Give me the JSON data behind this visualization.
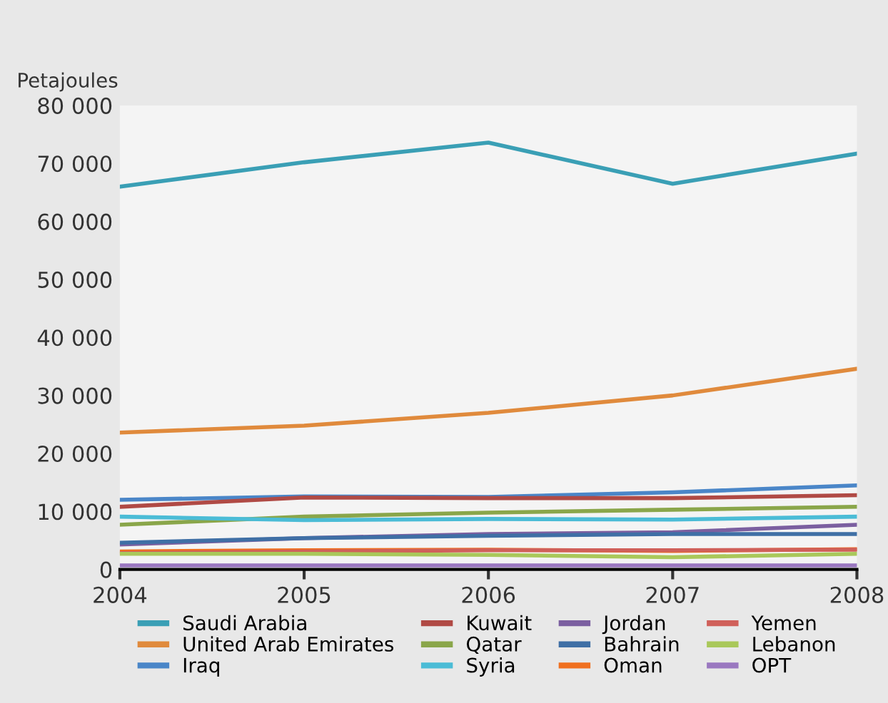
{
  "chart_data": {
    "type": "line",
    "ylabel": "Petajoules",
    "x": [
      2004,
      2005,
      2006,
      2007,
      2008
    ],
    "xlim": [
      2004,
      2008
    ],
    "xticks": [
      2004,
      2005,
      2006,
      2007,
      2008
    ],
    "ylim": [
      0,
      80000
    ],
    "yticks": [
      0,
      {
        "value": 10000,
        "label": "10 000"
      },
      {
        "value": 20000,
        "label": "20 000"
      },
      {
        "value": 30000,
        "label": "30 000"
      },
      {
        "value": 40000,
        "label": "40 000"
      },
      {
        "value": 50000,
        "label": "50 000"
      },
      {
        "value": 60000,
        "label": "60 000"
      },
      {
        "value": 70000,
        "label": "70 000"
      },
      {
        "value": 80000,
        "label": "80 000"
      }
    ],
    "grid": false,
    "legend": "bottom",
    "marker": "none",
    "line_style": "solid",
    "series": [
      {
        "name": "Saudi Arabia",
        "color": "#3a9fb5",
        "values": [
          66000,
          70200,
          73600,
          66500,
          71700
        ]
      },
      {
        "name": "United Arab Emirates",
        "color": "#e08a3c",
        "values": [
          23600,
          24800,
          27000,
          30000,
          34600
        ]
      },
      {
        "name": "Iraq",
        "color": "#4a86c8",
        "values": [
          12000,
          12600,
          12500,
          13300,
          14500
        ]
      },
      {
        "name": "Kuwait",
        "color": "#b04a45",
        "values": [
          10800,
          12400,
          12300,
          12300,
          12800
        ]
      },
      {
        "name": "Qatar",
        "color": "#8aa64a",
        "values": [
          7700,
          9100,
          9800,
          10300,
          10800
        ]
      },
      {
        "name": "Syria",
        "color": "#4bbcd6",
        "values": [
          9100,
          8500,
          8700,
          8600,
          9100
        ]
      },
      {
        "name": "Jordan",
        "color": "#7b5fa0",
        "values": [
          4300,
          5400,
          6100,
          6400,
          7700
        ]
      },
      {
        "name": "Bahrain",
        "color": "#3f6fa5",
        "values": [
          4600,
          5400,
          5800,
          6100,
          6100
        ]
      },
      {
        "name": "Oman",
        "color": "#f07020",
        "values": [
          3100,
          3300,
          3400,
          3200,
          3500
        ]
      },
      {
        "name": "Yemen",
        "color": "#d0605a",
        "values": [
          2800,
          3100,
          3300,
          3300,
          3400
        ]
      },
      {
        "name": "Lebanon",
        "color": "#a9c85a",
        "values": [
          2700,
          2700,
          2500,
          2100,
          2700
        ]
      },
      {
        "name": "OPT",
        "color": "#9a78c0",
        "values": [
          700,
          700,
          700,
          700,
          700
        ]
      }
    ]
  }
}
